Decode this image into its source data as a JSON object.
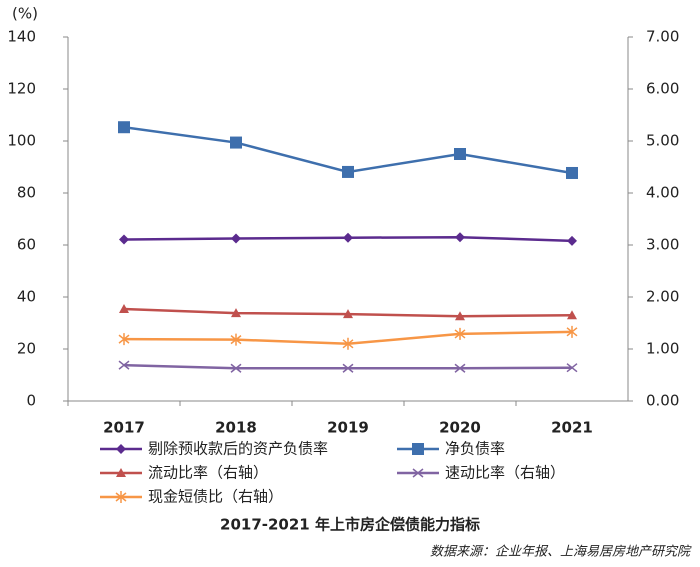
{
  "chart_data": {
    "type": "line",
    "title": "2017-2021 年上市房企偿债能力指标",
    "source": "数据来源：企业年报、上海易居房地产研究院",
    "y_label": "(%)",
    "categories": [
      "2017",
      "2018",
      "2019",
      "2020",
      "2021"
    ],
    "ylim": [
      0,
      140
    ],
    "yticks": [
      0,
      20,
      40,
      60,
      80,
      100,
      120,
      140
    ],
    "y2lim": [
      0,
      7
    ],
    "y2ticks": [
      {
        "value": 0,
        "label": "0.00"
      },
      {
        "value": 1,
        "label": "1.00"
      },
      {
        "value": 2,
        "label": "2.00"
      },
      {
        "value": 3,
        "label": "3.00"
      },
      {
        "value": 4,
        "label": "4.00"
      },
      {
        "value": 5,
        "label": "5.00"
      },
      {
        "value": 6,
        "label": "6.00"
      },
      {
        "value": 7,
        "label": "7.00"
      }
    ],
    "grid": false,
    "series": [
      {
        "name": "剔除预收款后的资产负债率",
        "color": "#5b2b8e",
        "marker": "diamond",
        "values": [
          62.1,
          62.5,
          62.8,
          63.0,
          61.6
        ]
      },
      {
        "name": "净负债率",
        "color": "#3e6fad",
        "marker": "square",
        "values": [
          105.3,
          99.4,
          88.1,
          95.0,
          87.7
        ]
      },
      {
        "name": "流动比率（右轴）",
        "color": "#c0504d",
        "marker": "triangle",
        "axis": "y2",
        "values": [
          1.77,
          1.69,
          1.67,
          1.63,
          1.65
        ]
      },
      {
        "name": "速动比率（右轴）",
        "color": "#8064a2",
        "marker": "x",
        "axis": "y2",
        "values": [
          0.69,
          0.63,
          0.63,
          0.63,
          0.64
        ]
      },
      {
        "name": "现金短债比（右轴）",
        "color": "#f79646",
        "marker": "star",
        "axis": "y2",
        "values": [
          1.19,
          1.18,
          1.1,
          1.29,
          1.33
        ]
      }
    ]
  }
}
